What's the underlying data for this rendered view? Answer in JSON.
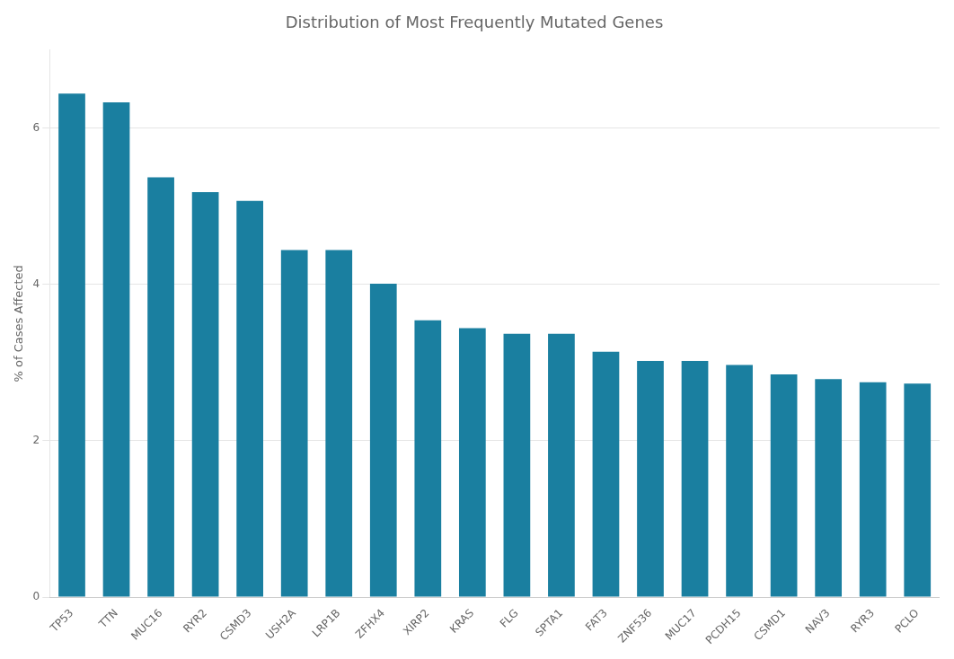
{
  "chart_data": {
    "type": "bar",
    "title": "Distribution of Most Frequently Mutated Genes",
    "ylabel": "% of Cases Affected",
    "categories": [
      "TP53",
      "TTN",
      "MUC16",
      "RYR2",
      "CSMD3",
      "USH2A",
      "LRP1B",
      "ZFHX4",
      "XIRP2",
      "KRAS",
      "FLG",
      "SPTA1",
      "FAT3",
      "ZNF536",
      "MUC17",
      "PCDH15",
      "CSMD1",
      "NAV3",
      "RYR3",
      "PCLO"
    ],
    "values": [
      6.44,
      6.33,
      5.37,
      5.18,
      5.07,
      4.44,
      4.44,
      4.01,
      3.54,
      3.44,
      3.37,
      3.37,
      3.14,
      3.02,
      3.02,
      2.97,
      2.85,
      2.79,
      2.75,
      2.73
    ],
    "color": "#1a7fa0",
    "ylim": [
      0,
      7
    ],
    "yticks": [
      0,
      2,
      4,
      6
    ],
    "grid": true
  }
}
